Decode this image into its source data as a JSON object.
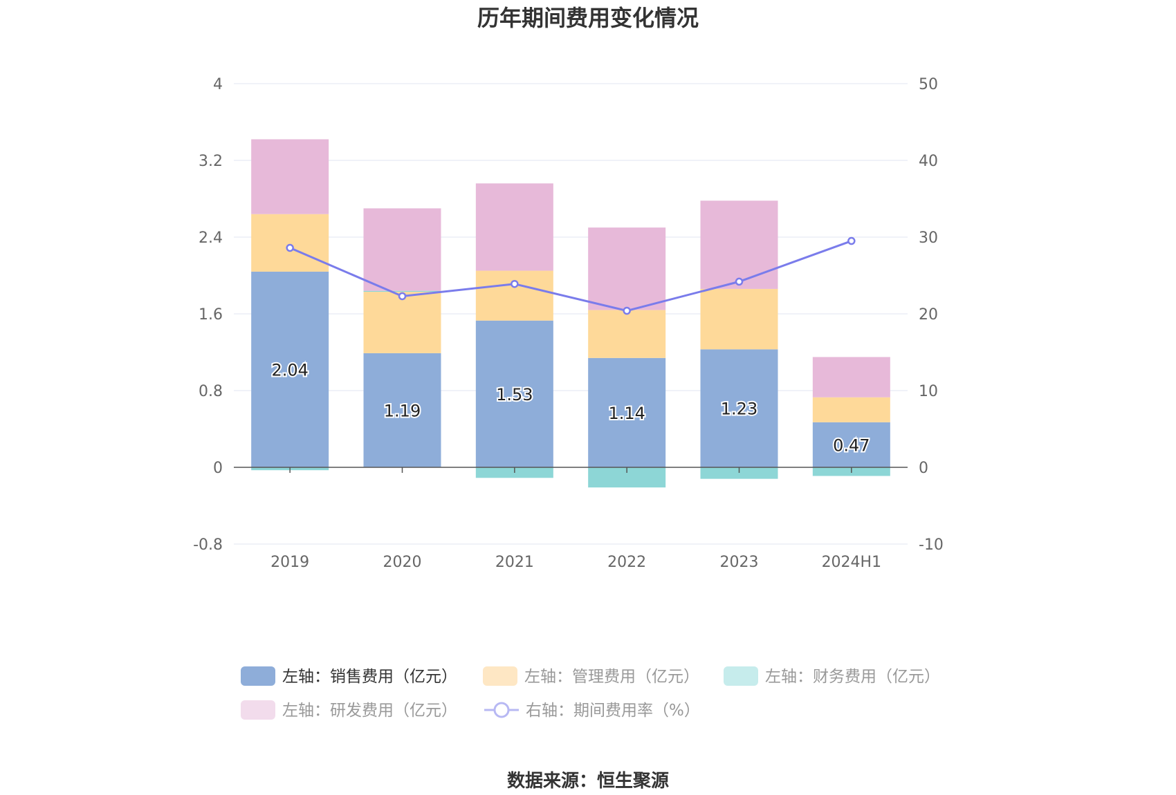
{
  "chart_data": {
    "type": "bar",
    "title": "历年期间费用变化情况",
    "categories": [
      "2019",
      "2020",
      "2021",
      "2022",
      "2023",
      "2024H1"
    ],
    "y_left": {
      "ticks": [
        "4",
        "3.2",
        "2.4",
        "1.6",
        "0.8",
        "0",
        "-0.8"
      ],
      "range": [
        -0.8,
        4
      ]
    },
    "y_right": {
      "ticks": [
        "50",
        "40",
        "30",
        "20",
        "10",
        "0",
        "-10"
      ],
      "range": [
        -10,
        50
      ]
    },
    "series": [
      {
        "name": "左轴：销售费用（亿元）",
        "axis": "left",
        "type": "bar",
        "color": "#8eadd9",
        "values": [
          2.04,
          1.19,
          1.53,
          1.14,
          1.23,
          0.47
        ],
        "labels": [
          "2.04",
          "1.19",
          "1.53",
          "1.14",
          "1.23",
          "0.47"
        ]
      },
      {
        "name": "左轴：管理费用（亿元）",
        "axis": "left",
        "type": "bar",
        "color": "#fed999",
        "values": [
          0.6,
          0.64,
          0.52,
          0.5,
          0.63,
          0.26
        ]
      },
      {
        "name": "左轴：财务费用（亿元）",
        "axis": "left",
        "type": "bar",
        "color": "#8dd6d6",
        "values": [
          -0.03,
          0.01,
          -0.11,
          -0.21,
          -0.12,
          -0.09
        ]
      },
      {
        "name": "左轴：研发费用（亿元）",
        "axis": "left",
        "type": "bar",
        "color": "#e7b9d9",
        "values": [
          0.78,
          0.86,
          0.91,
          0.86,
          0.92,
          0.42
        ]
      },
      {
        "name": "右轴：期间费用率（%）",
        "axis": "right",
        "type": "line",
        "color": "#7a7ceb",
        "values": [
          28.6,
          22.3,
          23.9,
          20.4,
          24.2,
          29.5
        ]
      }
    ],
    "legend_placement": "bottom",
    "grid": true
  },
  "legend": {
    "colors": [
      "#8eadd9",
      "#fee7c4",
      "#c6ecec",
      "#f2dcec",
      "#b7b8f3"
    ],
    "text_colors": [
      "#333333",
      "#999999",
      "#999999",
      "#999999",
      "#999999"
    ]
  },
  "source": "数据来源：恒生聚源"
}
